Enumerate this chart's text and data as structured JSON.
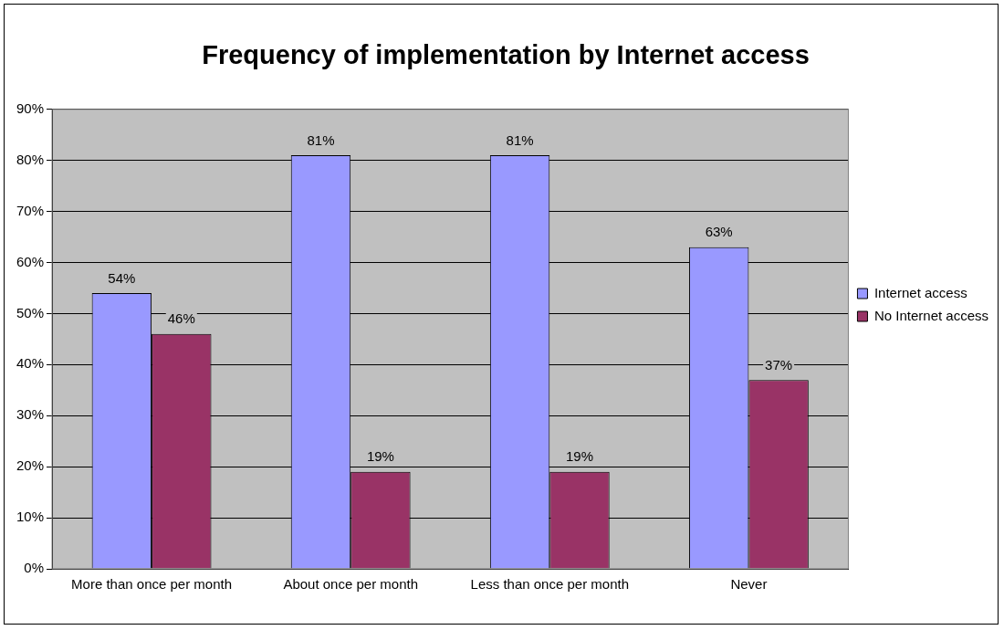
{
  "chart_data": {
    "type": "bar",
    "title": "Frequency of implementation by Internet access",
    "categories": [
      "More than once per month",
      "About once per month",
      "Less than once per month",
      "Never"
    ],
    "series": [
      {
        "name": "Internet access",
        "color": "#9999ff",
        "values": [
          54,
          81,
          81,
          63
        ],
        "value_labels": [
          "54%",
          "81%",
          "81%",
          "63%"
        ]
      },
      {
        "name": "No Internet access",
        "color": "#993366",
        "values": [
          46,
          19,
          19,
          37
        ],
        "value_labels": [
          "46%",
          "19%",
          "19%",
          "37%"
        ]
      }
    ],
    "ylim": [
      0,
      90
    ],
    "yticks": [
      {
        "value": 0,
        "label": "0%"
      },
      {
        "value": 10,
        "label": "10%"
      },
      {
        "value": 20,
        "label": "20%"
      },
      {
        "value": 30,
        "label": "30%"
      },
      {
        "value": 40,
        "label": "40%"
      },
      {
        "value": 50,
        "label": "50%"
      },
      {
        "value": 60,
        "label": "60%"
      },
      {
        "value": 70,
        "label": "70%"
      },
      {
        "value": 80,
        "label": "80%"
      },
      {
        "value": 90,
        "label": "90%"
      }
    ],
    "grid": "y",
    "legend": "right"
  }
}
